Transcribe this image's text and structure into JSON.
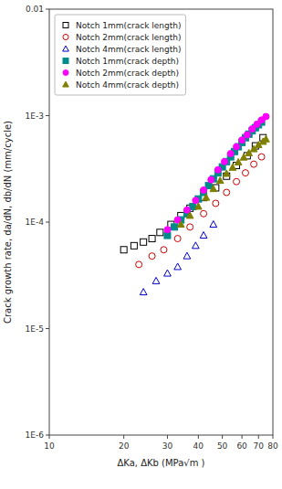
{
  "chart_data": {
    "type": "scatter",
    "xlabel": "ΔKa, ΔKb (MPa√m )",
    "ylabel": "Crack growth rate, da/dN, db/dN (mm/cycle)",
    "xlim": [
      10,
      80
    ],
    "ylim": [
      1e-06,
      0.01
    ],
    "xticks": [
      10,
      20,
      30,
      40,
      50,
      60,
      70,
      80
    ],
    "yticks": [
      {
        "value": 1e-06,
        "label": "1E-6"
      },
      {
        "value": 1e-05,
        "label": "1E-5"
      },
      {
        "value": 0.0001,
        "label": "1E-4"
      },
      {
        "value": 0.001,
        "label": "1E-3"
      },
      0.01
    ],
    "log": true,
    "grid": false,
    "legend": "upper-left",
    "series": [
      {
        "name": "Notch 1mm(crack length)",
        "color": "#000000",
        "marker": "square-open",
        "x": [
          20,
          22,
          24,
          26,
          28,
          31,
          34,
          37,
          42,
          47,
          52,
          57,
          63,
          68,
          73
        ],
        "values": [
          5.5e-05,
          6e-05,
          6.5e-05,
          7e-05,
          8e-05,
          9.5e-05,
          0.000115,
          0.000135,
          0.00017,
          0.00021,
          0.00027,
          0.00034,
          0.00042,
          0.00052,
          0.00062
        ]
      },
      {
        "name": "Notch 2mm(crack length)",
        "color": "#cc0000",
        "marker": "circle-open",
        "x": [
          23,
          26,
          29,
          33,
          37,
          42,
          47,
          52,
          57,
          62,
          67,
          72
        ],
        "values": [
          4e-05,
          4.8e-05,
          5.5e-05,
          7e-05,
          9e-05,
          0.00012,
          0.00015,
          0.00019,
          0.00024,
          0.00029,
          0.00035,
          0.00041
        ]
      },
      {
        "name": "Notch 4mm(crack length)",
        "color": "#0000cc",
        "marker": "triangle-open",
        "x": [
          24,
          27,
          30,
          33,
          36,
          39,
          42,
          46
        ],
        "values": [
          2.2e-05,
          2.8e-05,
          3.3e-05,
          3.8e-05,
          4.8e-05,
          6e-05,
          7.5e-05,
          9.5e-05
        ]
      },
      {
        "name": "Notch 1mm(crack depth)",
        "color": "#008B8B",
        "marker": "square",
        "x": [
          30,
          32,
          34,
          36,
          38,
          40,
          42,
          44,
          46,
          48,
          50,
          52,
          54,
          56,
          58,
          60,
          62,
          64,
          66,
          68,
          70,
          72
        ],
        "values": [
          7.5e-05,
          9e-05,
          0.000105,
          0.00012,
          0.00014,
          0.000165,
          0.00019,
          0.00022,
          0.000255,
          0.00029,
          0.00033,
          0.00037,
          0.00041,
          0.00046,
          0.00051,
          0.00056,
          0.00062,
          0.00067,
          0.00072,
          0.00077,
          0.00082,
          0.00087
        ]
      },
      {
        "name": "Notch 2mm(crack depth)",
        "color": "#ff00ff",
        "marker": "circle",
        "x": [
          30,
          33,
          36,
          39,
          42,
          45,
          48,
          51,
          54,
          57,
          60,
          63,
          66,
          69,
          72,
          75
        ],
        "values": [
          8.5e-05,
          0.000105,
          0.00013,
          0.00016,
          0.0002,
          0.00025,
          0.00031,
          0.00037,
          0.00044,
          0.00051,
          0.00059,
          0.00066,
          0.00075,
          0.00083,
          0.00091,
          0.00098
        ]
      },
      {
        "name": "Notch 4mm(crack depth)",
        "color": "#808000",
        "marker": "triangle",
        "x": [
          34,
          37,
          40,
          43,
          46,
          49,
          52,
          55,
          58,
          61,
          64,
          67,
          70,
          73,
          75
        ],
        "values": [
          9.5e-05,
          0.000115,
          0.00014,
          0.00017,
          0.000205,
          0.000245,
          0.000285,
          0.000325,
          0.000365,
          0.000405,
          0.000445,
          0.000485,
          0.00053,
          0.00057,
          0.0006
        ]
      }
    ]
  }
}
